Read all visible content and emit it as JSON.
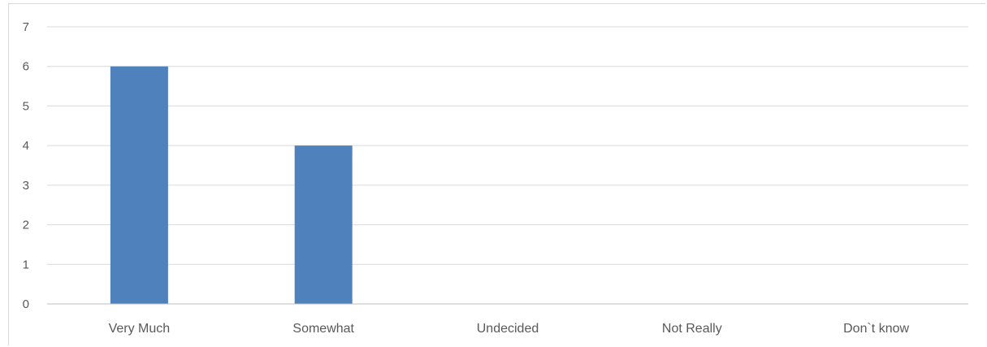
{
  "chart_data": {
    "type": "bar",
    "categories": [
      "Very Much",
      "Somewhat",
      "Undecided",
      "Not Really",
      "Don`t know"
    ],
    "values": [
      6,
      4,
      0,
      0,
      0
    ],
    "ylim": [
      0,
      7
    ],
    "yticks": [
      0,
      1,
      2,
      3,
      4,
      5,
      6,
      7
    ],
    "title": "",
    "xlabel": "",
    "ylabel": "",
    "grid": true,
    "colors": {
      "bar": "#4f81bd",
      "grid": "#d9d9d9",
      "axis": "#bfbfbf",
      "text": "#595959"
    }
  }
}
